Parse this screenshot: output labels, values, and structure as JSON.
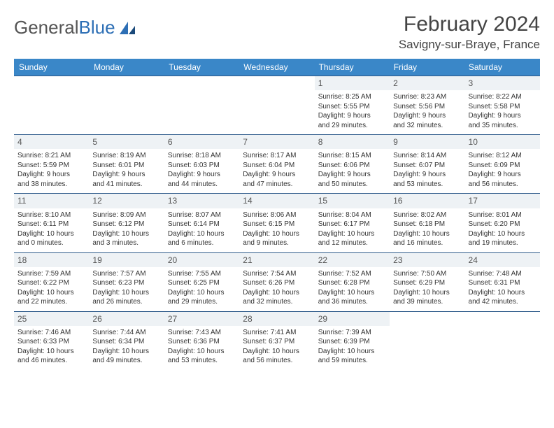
{
  "logo": {
    "textGray": "General",
    "textBlue": "Blue"
  },
  "title": "February 2024",
  "location": "Savigny-sur-Braye, France",
  "colors": {
    "headerBar": "#3a87c8",
    "rowBorder": "#2d5a8a",
    "dayNumBg": "#eef2f5",
    "textGray": "#555555",
    "textDark": "#333333",
    "logoBlue": "#2d6fb5"
  },
  "weekdays": [
    "Sunday",
    "Monday",
    "Tuesday",
    "Wednesday",
    "Thursday",
    "Friday",
    "Saturday"
  ],
  "weeks": [
    [
      {
        "empty": true
      },
      {
        "empty": true
      },
      {
        "empty": true
      },
      {
        "empty": true
      },
      {
        "num": "1",
        "sunrise": "Sunrise: 8:25 AM",
        "sunset": "Sunset: 5:55 PM",
        "day1": "Daylight: 9 hours",
        "day2": "and 29 minutes."
      },
      {
        "num": "2",
        "sunrise": "Sunrise: 8:23 AM",
        "sunset": "Sunset: 5:56 PM",
        "day1": "Daylight: 9 hours",
        "day2": "and 32 minutes."
      },
      {
        "num": "3",
        "sunrise": "Sunrise: 8:22 AM",
        "sunset": "Sunset: 5:58 PM",
        "day1": "Daylight: 9 hours",
        "day2": "and 35 minutes."
      }
    ],
    [
      {
        "num": "4",
        "sunrise": "Sunrise: 8:21 AM",
        "sunset": "Sunset: 5:59 PM",
        "day1": "Daylight: 9 hours",
        "day2": "and 38 minutes."
      },
      {
        "num": "5",
        "sunrise": "Sunrise: 8:19 AM",
        "sunset": "Sunset: 6:01 PM",
        "day1": "Daylight: 9 hours",
        "day2": "and 41 minutes."
      },
      {
        "num": "6",
        "sunrise": "Sunrise: 8:18 AM",
        "sunset": "Sunset: 6:03 PM",
        "day1": "Daylight: 9 hours",
        "day2": "and 44 minutes."
      },
      {
        "num": "7",
        "sunrise": "Sunrise: 8:17 AM",
        "sunset": "Sunset: 6:04 PM",
        "day1": "Daylight: 9 hours",
        "day2": "and 47 minutes."
      },
      {
        "num": "8",
        "sunrise": "Sunrise: 8:15 AM",
        "sunset": "Sunset: 6:06 PM",
        "day1": "Daylight: 9 hours",
        "day2": "and 50 minutes."
      },
      {
        "num": "9",
        "sunrise": "Sunrise: 8:14 AM",
        "sunset": "Sunset: 6:07 PM",
        "day1": "Daylight: 9 hours",
        "day2": "and 53 minutes."
      },
      {
        "num": "10",
        "sunrise": "Sunrise: 8:12 AM",
        "sunset": "Sunset: 6:09 PM",
        "day1": "Daylight: 9 hours",
        "day2": "and 56 minutes."
      }
    ],
    [
      {
        "num": "11",
        "sunrise": "Sunrise: 8:10 AM",
        "sunset": "Sunset: 6:11 PM",
        "day1": "Daylight: 10 hours",
        "day2": "and 0 minutes."
      },
      {
        "num": "12",
        "sunrise": "Sunrise: 8:09 AM",
        "sunset": "Sunset: 6:12 PM",
        "day1": "Daylight: 10 hours",
        "day2": "and 3 minutes."
      },
      {
        "num": "13",
        "sunrise": "Sunrise: 8:07 AM",
        "sunset": "Sunset: 6:14 PM",
        "day1": "Daylight: 10 hours",
        "day2": "and 6 minutes."
      },
      {
        "num": "14",
        "sunrise": "Sunrise: 8:06 AM",
        "sunset": "Sunset: 6:15 PM",
        "day1": "Daylight: 10 hours",
        "day2": "and 9 minutes."
      },
      {
        "num": "15",
        "sunrise": "Sunrise: 8:04 AM",
        "sunset": "Sunset: 6:17 PM",
        "day1": "Daylight: 10 hours",
        "day2": "and 12 minutes."
      },
      {
        "num": "16",
        "sunrise": "Sunrise: 8:02 AM",
        "sunset": "Sunset: 6:18 PM",
        "day1": "Daylight: 10 hours",
        "day2": "and 16 minutes."
      },
      {
        "num": "17",
        "sunrise": "Sunrise: 8:01 AM",
        "sunset": "Sunset: 6:20 PM",
        "day1": "Daylight: 10 hours",
        "day2": "and 19 minutes."
      }
    ],
    [
      {
        "num": "18",
        "sunrise": "Sunrise: 7:59 AM",
        "sunset": "Sunset: 6:22 PM",
        "day1": "Daylight: 10 hours",
        "day2": "and 22 minutes."
      },
      {
        "num": "19",
        "sunrise": "Sunrise: 7:57 AM",
        "sunset": "Sunset: 6:23 PM",
        "day1": "Daylight: 10 hours",
        "day2": "and 26 minutes."
      },
      {
        "num": "20",
        "sunrise": "Sunrise: 7:55 AM",
        "sunset": "Sunset: 6:25 PM",
        "day1": "Daylight: 10 hours",
        "day2": "and 29 minutes."
      },
      {
        "num": "21",
        "sunrise": "Sunrise: 7:54 AM",
        "sunset": "Sunset: 6:26 PM",
        "day1": "Daylight: 10 hours",
        "day2": "and 32 minutes."
      },
      {
        "num": "22",
        "sunrise": "Sunrise: 7:52 AM",
        "sunset": "Sunset: 6:28 PM",
        "day1": "Daylight: 10 hours",
        "day2": "and 36 minutes."
      },
      {
        "num": "23",
        "sunrise": "Sunrise: 7:50 AM",
        "sunset": "Sunset: 6:29 PM",
        "day1": "Daylight: 10 hours",
        "day2": "and 39 minutes."
      },
      {
        "num": "24",
        "sunrise": "Sunrise: 7:48 AM",
        "sunset": "Sunset: 6:31 PM",
        "day1": "Daylight: 10 hours",
        "day2": "and 42 minutes."
      }
    ],
    [
      {
        "num": "25",
        "sunrise": "Sunrise: 7:46 AM",
        "sunset": "Sunset: 6:33 PM",
        "day1": "Daylight: 10 hours",
        "day2": "and 46 minutes."
      },
      {
        "num": "26",
        "sunrise": "Sunrise: 7:44 AM",
        "sunset": "Sunset: 6:34 PM",
        "day1": "Daylight: 10 hours",
        "day2": "and 49 minutes."
      },
      {
        "num": "27",
        "sunrise": "Sunrise: 7:43 AM",
        "sunset": "Sunset: 6:36 PM",
        "day1": "Daylight: 10 hours",
        "day2": "and 53 minutes."
      },
      {
        "num": "28",
        "sunrise": "Sunrise: 7:41 AM",
        "sunset": "Sunset: 6:37 PM",
        "day1": "Daylight: 10 hours",
        "day2": "and 56 minutes."
      },
      {
        "num": "29",
        "sunrise": "Sunrise: 7:39 AM",
        "sunset": "Sunset: 6:39 PM",
        "day1": "Daylight: 10 hours",
        "day2": "and 59 minutes."
      },
      {
        "empty": true
      },
      {
        "empty": true
      }
    ]
  ]
}
